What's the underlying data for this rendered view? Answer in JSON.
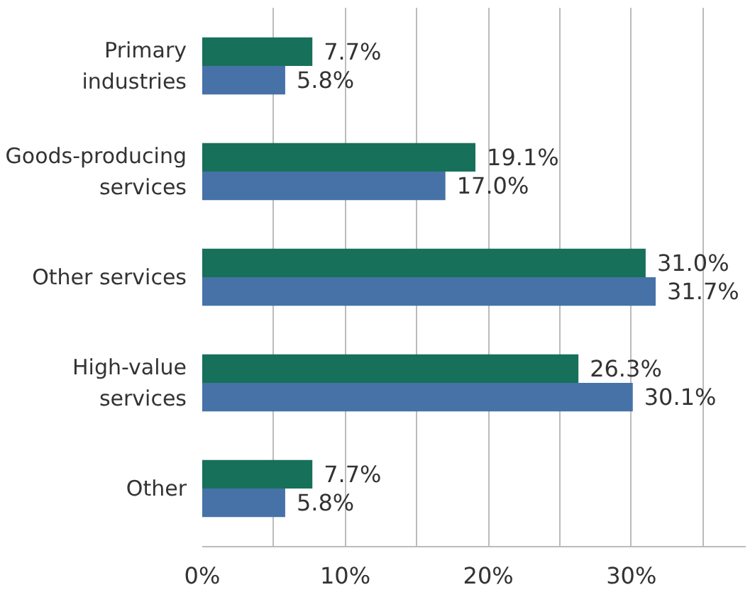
{
  "chart_data": {
    "type": "bar",
    "orientation": "horizontal",
    "categories": [
      "Primary industries",
      "Goods-producing services",
      "Other services",
      "High-value services",
      "Other"
    ],
    "series": [
      {
        "color": "#17705a",
        "values": [
          7.7,
          19.1,
          31.0,
          26.3,
          7.7
        ],
        "value_labels": [
          "7.7%",
          "19.1%",
          "31.0%",
          "26.3%",
          "7.7%"
        ]
      },
      {
        "color": "#4672a8",
        "values": [
          5.8,
          17.0,
          31.7,
          30.1,
          5.8
        ],
        "value_labels": [
          "5.8%",
          "17.0%",
          "31.7%",
          "30.1%",
          "5.8%"
        ]
      }
    ],
    "xlim": [
      0,
      38
    ],
    "xticks": [
      {
        "value": 0,
        "label": "0%"
      },
      {
        "value": 5,
        "label": null
      },
      {
        "value": 10,
        "label": "10%"
      },
      {
        "value": 15,
        "label": null
      },
      {
        "value": 20,
        "label": "20%"
      },
      {
        "value": 25,
        "label": null
      },
      {
        "value": 30,
        "label": "30%"
      },
      {
        "value": 35,
        "label": null
      }
    ],
    "grid": "x"
  }
}
